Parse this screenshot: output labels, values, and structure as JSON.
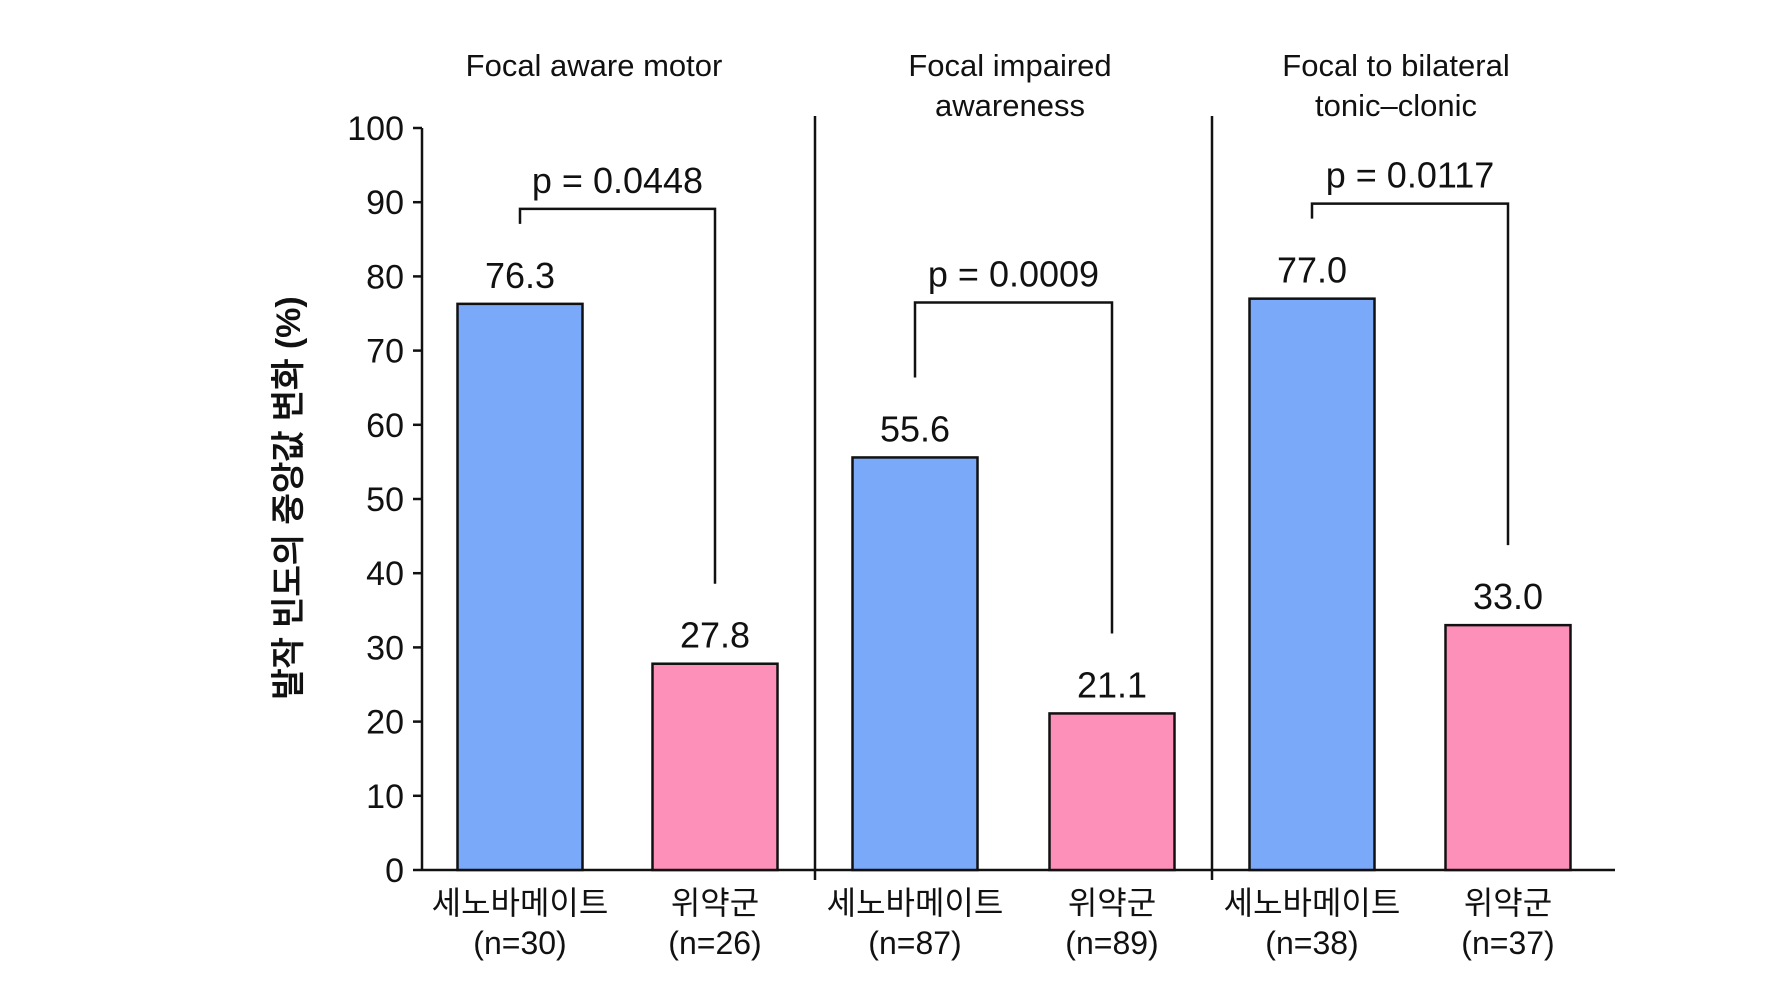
{
  "chart_data": {
    "type": "bar",
    "ylabel": "발작 빈도의 중앙값 변화 (%)",
    "ylim": [
      0,
      100
    ],
    "yticks": [
      0,
      10,
      20,
      30,
      40,
      50,
      60,
      70,
      80,
      90,
      100
    ],
    "colors": {
      "treatment": "#7aa9fa",
      "placebo": "#fd90b8",
      "stroke": "#111111"
    },
    "panels": [
      {
        "title": [
          "Focal aware motor"
        ],
        "p_value": "p = 0.0448",
        "bars": [
          {
            "group": "treatment",
            "name": "세노바메이트",
            "n": "(n=30)",
            "value": 76.3,
            "label": "76.3"
          },
          {
            "group": "placebo",
            "name": "위약군",
            "n": "(n=26)",
            "value": 27.8,
            "label": "27.8"
          }
        ]
      },
      {
        "title": [
          "Focal impaired",
          "awareness"
        ],
        "p_value": "p = 0.0009",
        "bars": [
          {
            "group": "treatment",
            "name": "세노바메이트",
            "n": "(n=87)",
            "value": 55.6,
            "label": "55.6"
          },
          {
            "group": "placebo",
            "name": "위약군",
            "n": "(n=89)",
            "value": 21.1,
            "label": "21.1"
          }
        ]
      },
      {
        "title": [
          "Focal to bilateral",
          "tonic–clonic"
        ],
        "p_value": "p = 0.0117",
        "bars": [
          {
            "group": "treatment",
            "name": "세노바메이트",
            "n": "(n=38)",
            "value": 77.0,
            "label": "77.0"
          },
          {
            "group": "placebo",
            "name": "위약군",
            "n": "(n=37)",
            "value": 33.0,
            "label": "33.0"
          }
        ]
      }
    ]
  }
}
